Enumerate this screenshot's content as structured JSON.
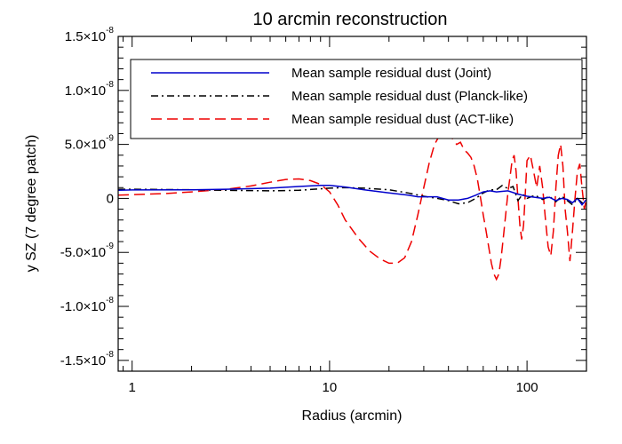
{
  "chart_data": {
    "type": "line",
    "title": "10 arcmin reconstruction",
    "xlabel": "Radius (arcmin)",
    "ylabel": "y SZ (7 degree patch)",
    "xscale": "log",
    "xlim": [
      0.85,
      200
    ],
    "ylim": [
      -1.6e-08,
      1.5e-08
    ],
    "grid": false,
    "legend_position": "top-right",
    "x_ticks": [
      {
        "value": 1,
        "label": "1"
      },
      {
        "value": 10,
        "label": "10"
      },
      {
        "value": 100,
        "label": "100"
      }
    ],
    "y_ticks": [
      {
        "value": 1.5e-08,
        "mantissa": "1.5×10",
        "exponent": "-8"
      },
      {
        "value": 1e-08,
        "mantissa": "1.0×10",
        "exponent": "-8"
      },
      {
        "value": 5e-09,
        "mantissa": "5.0×10",
        "exponent": "-9"
      },
      {
        "value": 0,
        "mantissa": "0",
        "exponent": ""
      },
      {
        "value": -5e-09,
        "mantissa": "-5.0×10",
        "exponent": "-9"
      },
      {
        "value": -1e-08,
        "mantissa": "-1.0×10",
        "exponent": "-8"
      },
      {
        "value": -1.5e-08,
        "mantissa": "-1.5×10",
        "exponent": "-8"
      }
    ],
    "series": [
      {
        "name": "Mean sample residual dust (Joint)",
        "color": "#0000cc",
        "dash": "solid",
        "x": [
          0.85,
          1,
          2,
          3,
          5,
          7,
          9,
          10,
          12,
          15,
          20,
          25,
          28,
          30,
          35,
          40,
          45,
          50,
          55,
          60,
          65,
          70,
          80,
          90,
          100,
          110,
          120,
          130,
          140,
          150,
          160,
          170,
          180,
          190,
          200
        ],
        "y": [
          7.5e-10,
          7.8e-10,
          8e-10,
          8.5e-10,
          9.5e-10,
          1.1e-09,
          1.2e-09,
          1.2e-09,
          1.05e-09,
          8e-10,
          5e-10,
          3e-10,
          1.5e-10,
          1.5e-10,
          1.5e-10,
          -1.5e-10,
          -1.5e-10,
          0,
          3e-10,
          6e-10,
          7e-10,
          6e-10,
          7e-10,
          4e-10,
          2e-10,
          1e-10,
          0,
          1e-10,
          -2e-10,
          0,
          -1e-10,
          -4e-10,
          0,
          -6e-10,
          -1e-10
        ]
      },
      {
        "name": "Mean sample residual dust (Planck-like)",
        "color": "#000000",
        "dash": "dashdot",
        "x": [
          0.85,
          1,
          2,
          3,
          5,
          7,
          10,
          12,
          15,
          20,
          25,
          30,
          35,
          40,
          45,
          50,
          55,
          60,
          65,
          70,
          75,
          80,
          85,
          90,
          95,
          100,
          110,
          120,
          130,
          140,
          150,
          160,
          170,
          180,
          190,
          200
        ],
        "y": [
          8.5e-10,
          8.5e-10,
          8e-10,
          7.5e-10,
          7e-10,
          7.5e-10,
          9.5e-10,
          1e-09,
          9.5e-10,
          8e-10,
          5e-10,
          2e-10,
          0,
          -2e-10,
          -5e-10,
          -4e-10,
          0,
          5e-10,
          8e-10,
          8e-10,
          1.2e-09,
          9e-10,
          1.1e-09,
          -2e-10,
          4e-10,
          0,
          3e-10,
          -1e-10,
          2e-10,
          -3e-10,
          2e-10,
          -2e-10,
          -6e-10,
          0,
          -4e-10,
          -6e-10
        ]
      },
      {
        "name": "Mean sample residual dust (ACT-like)",
        "color": "#ee0000",
        "dash": "dash",
        "x": [
          0.85,
          1,
          1.5,
          2,
          3,
          4,
          5,
          6,
          7,
          8,
          9,
          10,
          11,
          12,
          14,
          16,
          18,
          20,
          22,
          24,
          26,
          28,
          30,
          32,
          34,
          36,
          38,
          40,
          42,
          44,
          46,
          48,
          50,
          52,
          54,
          56,
          58,
          60,
          62,
          64,
          66,
          68,
          70,
          72,
          74,
          76,
          78,
          80,
          82,
          84,
          86,
          88,
          90,
          92,
          94,
          96,
          98,
          100,
          104,
          108,
          112,
          116,
          120,
          124,
          128,
          132,
          136,
          140,
          144,
          148,
          152,
          156,
          160,
          165,
          170,
          175,
          180,
          185,
          190,
          195,
          200
        ],
        "y": [
          3e-10,
          3.5e-10,
          4.5e-10,
          6e-10,
          8.5e-10,
          1.15e-09,
          1.5e-09,
          1.75e-09,
          1.8e-09,
          1.65e-09,
          1.3e-09,
          6e-10,
          -6e-10,
          -2e-09,
          -3.7e-09,
          -4.9e-09,
          -5.6e-09,
          -6e-09,
          -6e-09,
          -5.5e-09,
          -4e-09,
          -1.5e-09,
          1e-09,
          3.3e-09,
          5e-09,
          5.8e-09,
          6.2e-09,
          6.1e-09,
          5.5e-09,
          5e-09,
          5.2e-09,
          4.5e-09,
          4.2e-09,
          3.8e-09,
          3e-09,
          1.8e-09,
          2e-10,
          -1.5e-09,
          -3e-09,
          -4.5e-09,
          -6e-09,
          -7e-09,
          -7.5e-09,
          -7e-09,
          -5.5e-09,
          -3.5e-09,
          -1.5e-09,
          5e-10,
          2e-09,
          3.5e-09,
          4e-09,
          2.5e-09,
          0,
          -2.5e-09,
          -3.8e-09,
          -2.5e-09,
          5e-10,
          3.5e-09,
          4e-09,
          2.5e-09,
          1e-09,
          3e-09,
          1e-09,
          -2e-09,
          -4.5e-09,
          -5.3e-09,
          -3e-09,
          1e-09,
          4e-09,
          5e-09,
          3e-09,
          -1e-09,
          -3e-09,
          -5.8e-09,
          -3e-09,
          0,
          2.5e-09,
          3.2e-09,
          1e-09,
          -1e-09,
          0
        ]
      }
    ]
  }
}
